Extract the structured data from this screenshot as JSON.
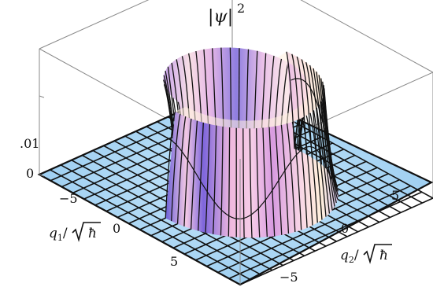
{
  "chart_data": {
    "type": "surface3d",
    "title": "",
    "zlabel_core": "ψ",
    "zlabel_exp": "2",
    "xlabel_num": "q",
    "xlabel_sub": "1",
    "xlabel_den": "ħ",
    "ylabel_num": "q",
    "ylabel_sub": "2",
    "ylabel_den": "ħ",
    "q1_ticks": [
      "−5",
      "0",
      "5"
    ],
    "q2_ticks": [
      "−5",
      "0",
      "5"
    ],
    "z_ticks": [
      "0",
      ".01"
    ],
    "q_range": [
      -9,
      9
    ],
    "z_range": [
      0,
      0.016
    ],
    "ring_radius": 5.2,
    "ring_width": 0.9,
    "peak_value": 0.013,
    "angular_nodes": 8,
    "grid": true,
    "colors": {
      "floor": "#a9d6f2",
      "mesh": "#111111",
      "ring_low": "#6f5bd6",
      "ring_high": "#f7c6e6",
      "ring_highlight": "#fff1df",
      "box": "#8a8a8a"
    }
  }
}
